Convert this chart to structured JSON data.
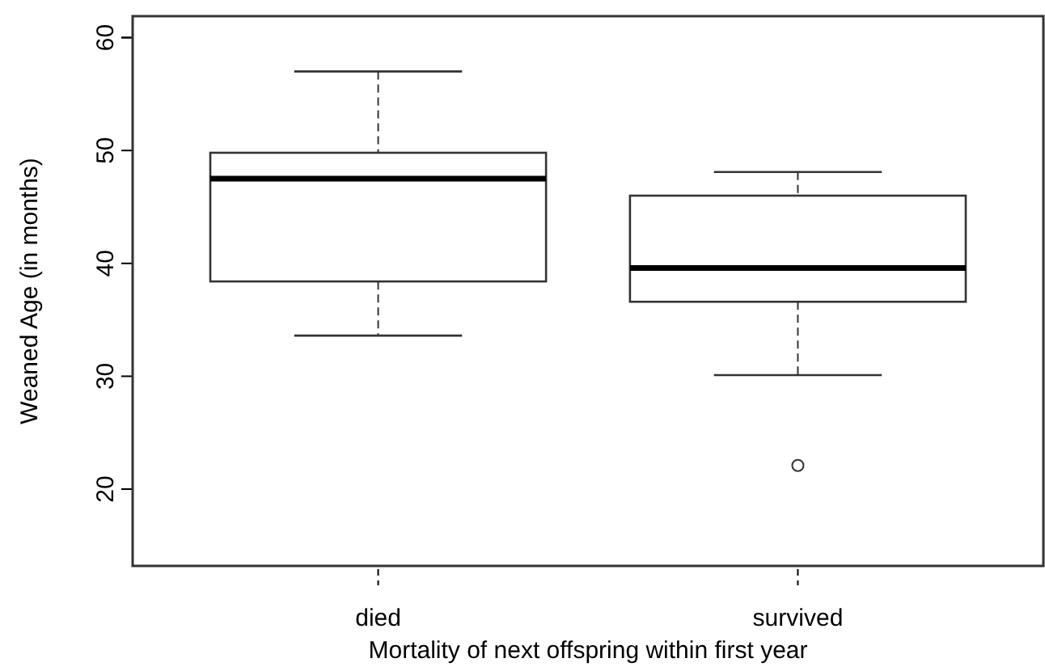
{
  "chart_data": {
    "type": "box",
    "xlabel": "Mortality of next offspring within first year",
    "ylabel": "Weaned Age (in months)",
    "categories": [
      "died",
      "survived"
    ],
    "boxes": [
      {
        "low": 33.6,
        "q1": 38.4,
        "median": 47.5,
        "q3": 49.8,
        "high": 57.0
      },
      {
        "low": 30.1,
        "q1": 36.6,
        "median": 39.6,
        "q3": 46.0,
        "high": 48.1,
        "outliers": [
          22.1
        ]
      }
    ],
    "ylim": [
      13.2,
      61.9
    ],
    "yticks": [
      20,
      30,
      40,
      50,
      60
    ],
    "grid": false
  }
}
